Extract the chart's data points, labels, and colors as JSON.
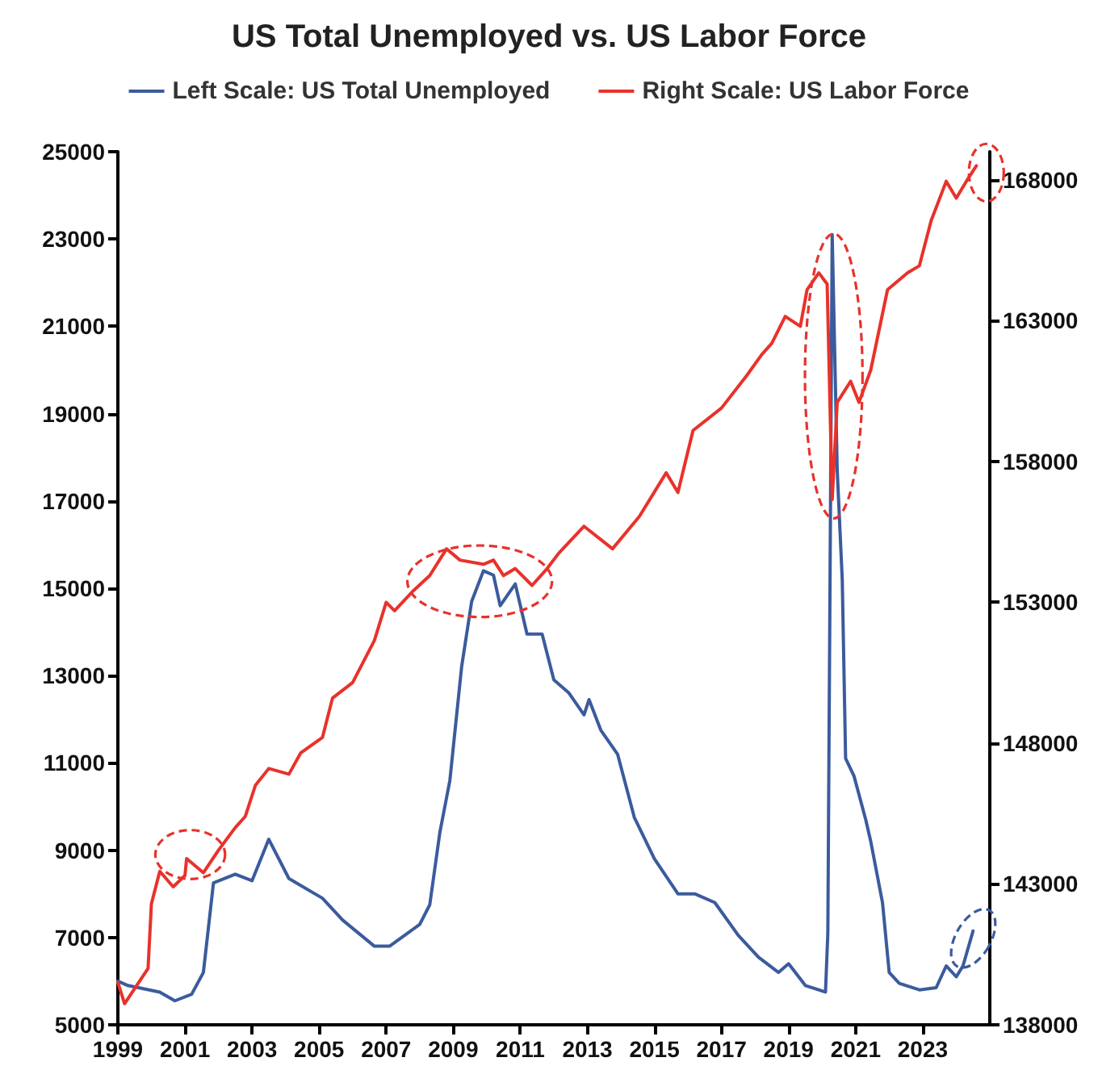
{
  "chart_data": {
    "type": "line",
    "title": "US Total Unemployed vs. US Labor Force",
    "legend": "top",
    "grid": false,
    "marker": "none",
    "line_style": "solid",
    "xlim": [
      1999,
      2025
    ],
    "xticks": [
      1999,
      2001,
      2003,
      2005,
      2007,
      2009,
      2011,
      2013,
      2015,
      2017,
      2019,
      2021,
      2023
    ],
    "ylim": [
      5000,
      25000
    ],
    "yticks": [
      5000,
      7000,
      9000,
      11000,
      13000,
      15000,
      17000,
      19000,
      21000,
      23000,
      25000
    ],
    "y2lim": [
      138000,
      169000
    ],
    "y2ticks": [
      138000,
      143000,
      148000,
      153000,
      158000,
      163000,
      168000
    ],
    "series": [
      {
        "name": "Left Scale: US Total Unemployed",
        "color": "#3b5b9d",
        "x": [
          1999,
          1999.3,
          2000.25,
          2000.7,
          2001.2,
          2001.55,
          2001.85,
          2002.5,
          2003,
          2003.5,
          2004.1,
          2005.1,
          2005.7,
          2006.65,
          2007.1,
          2008,
          2008.3,
          2008.6,
          2008.9,
          2009.25,
          2009.55,
          2009.9,
          2010.2,
          2010.4,
          2010.85,
          2011.2,
          2011.65,
          2012,
          2012.45,
          2012.9,
          2013.05,
          2013.4,
          2013.9,
          2014.4,
          2015,
          2015.7,
          2016.2,
          2016.8,
          2017.5,
          2018.1,
          2018.7,
          2019,
          2019.5,
          2020.1,
          2020.17,
          2020.3,
          2020.45,
          2020.6,
          2020.7,
          2020.95,
          2021.3,
          2021.45,
          2021.8,
          2022,
          2022.3,
          2022.9,
          2023.4,
          2023.7,
          2024,
          2024.2,
          2024.5
        ],
        "values": [
          6000,
          5900,
          5750,
          5550,
          5700,
          6200,
          8250,
          8450,
          8300,
          9250,
          8350,
          7900,
          7400,
          6800,
          6800,
          7300,
          7750,
          9400,
          10600,
          13200,
          14700,
          15400,
          15300,
          14600,
          15100,
          13950,
          13950,
          12900,
          12600,
          12100,
          12450,
          11750,
          11200,
          9750,
          8800,
          8000,
          8000,
          7800,
          7050,
          6550,
          6200,
          6400,
          5900,
          5750,
          7100,
          23100,
          17700,
          15200,
          11100,
          10700,
          9700,
          9200,
          7800,
          6200,
          5950,
          5800,
          5850,
          6350,
          6100,
          6350,
          7150
        ]
      },
      {
        "name": "Right Scale: US Labor Force",
        "color": "#e8322b",
        "axis": "y2",
        "x": [
          1999,
          1999.2,
          1999.9,
          2000,
          2000.25,
          2000.65,
          2001,
          2001.05,
          2001.55,
          2002,
          2002.5,
          2002.8,
          2003.1,
          2003.5,
          2004.1,
          2004.45,
          2005.1,
          2005.4,
          2006,
          2006.65,
          2007,
          2007.25,
          2007.8,
          2008.3,
          2008.8,
          2009.2,
          2009.9,
          2010.2,
          2010.5,
          2010.85,
          2011.35,
          2011.8,
          2012.15,
          2012.9,
          2013.75,
          2014.55,
          2015.35,
          2015.7,
          2016.15,
          2017,
          2017.75,
          2018.2,
          2018.5,
          2018.9,
          2019.35,
          2019.55,
          2019.9,
          2020.15,
          2020.3,
          2020.45,
          2020.85,
          2021.1,
          2021.45,
          2021.95,
          2022.55,
          2022.9,
          2023.25,
          2023.7,
          2024,
          2024.3,
          2024.6
        ],
        "values": [
          139500,
          138750,
          140000,
          142300,
          143450,
          142900,
          143300,
          143900,
          143400,
          144200,
          145000,
          145400,
          146500,
          147100,
          146900,
          147650,
          148200,
          149600,
          150150,
          151650,
          153000,
          152700,
          153400,
          153950,
          154900,
          154500,
          154350,
          154500,
          153950,
          154200,
          153600,
          154200,
          154750,
          155700,
          154900,
          156050,
          157600,
          156900,
          159100,
          159900,
          161050,
          161800,
          162200,
          163150,
          162800,
          164100,
          164700,
          164300,
          156650,
          160100,
          160850,
          160100,
          161250,
          164100,
          164700,
          164950,
          166550,
          167950,
          167350,
          167950,
          168500
        ]
      }
    ]
  }
}
